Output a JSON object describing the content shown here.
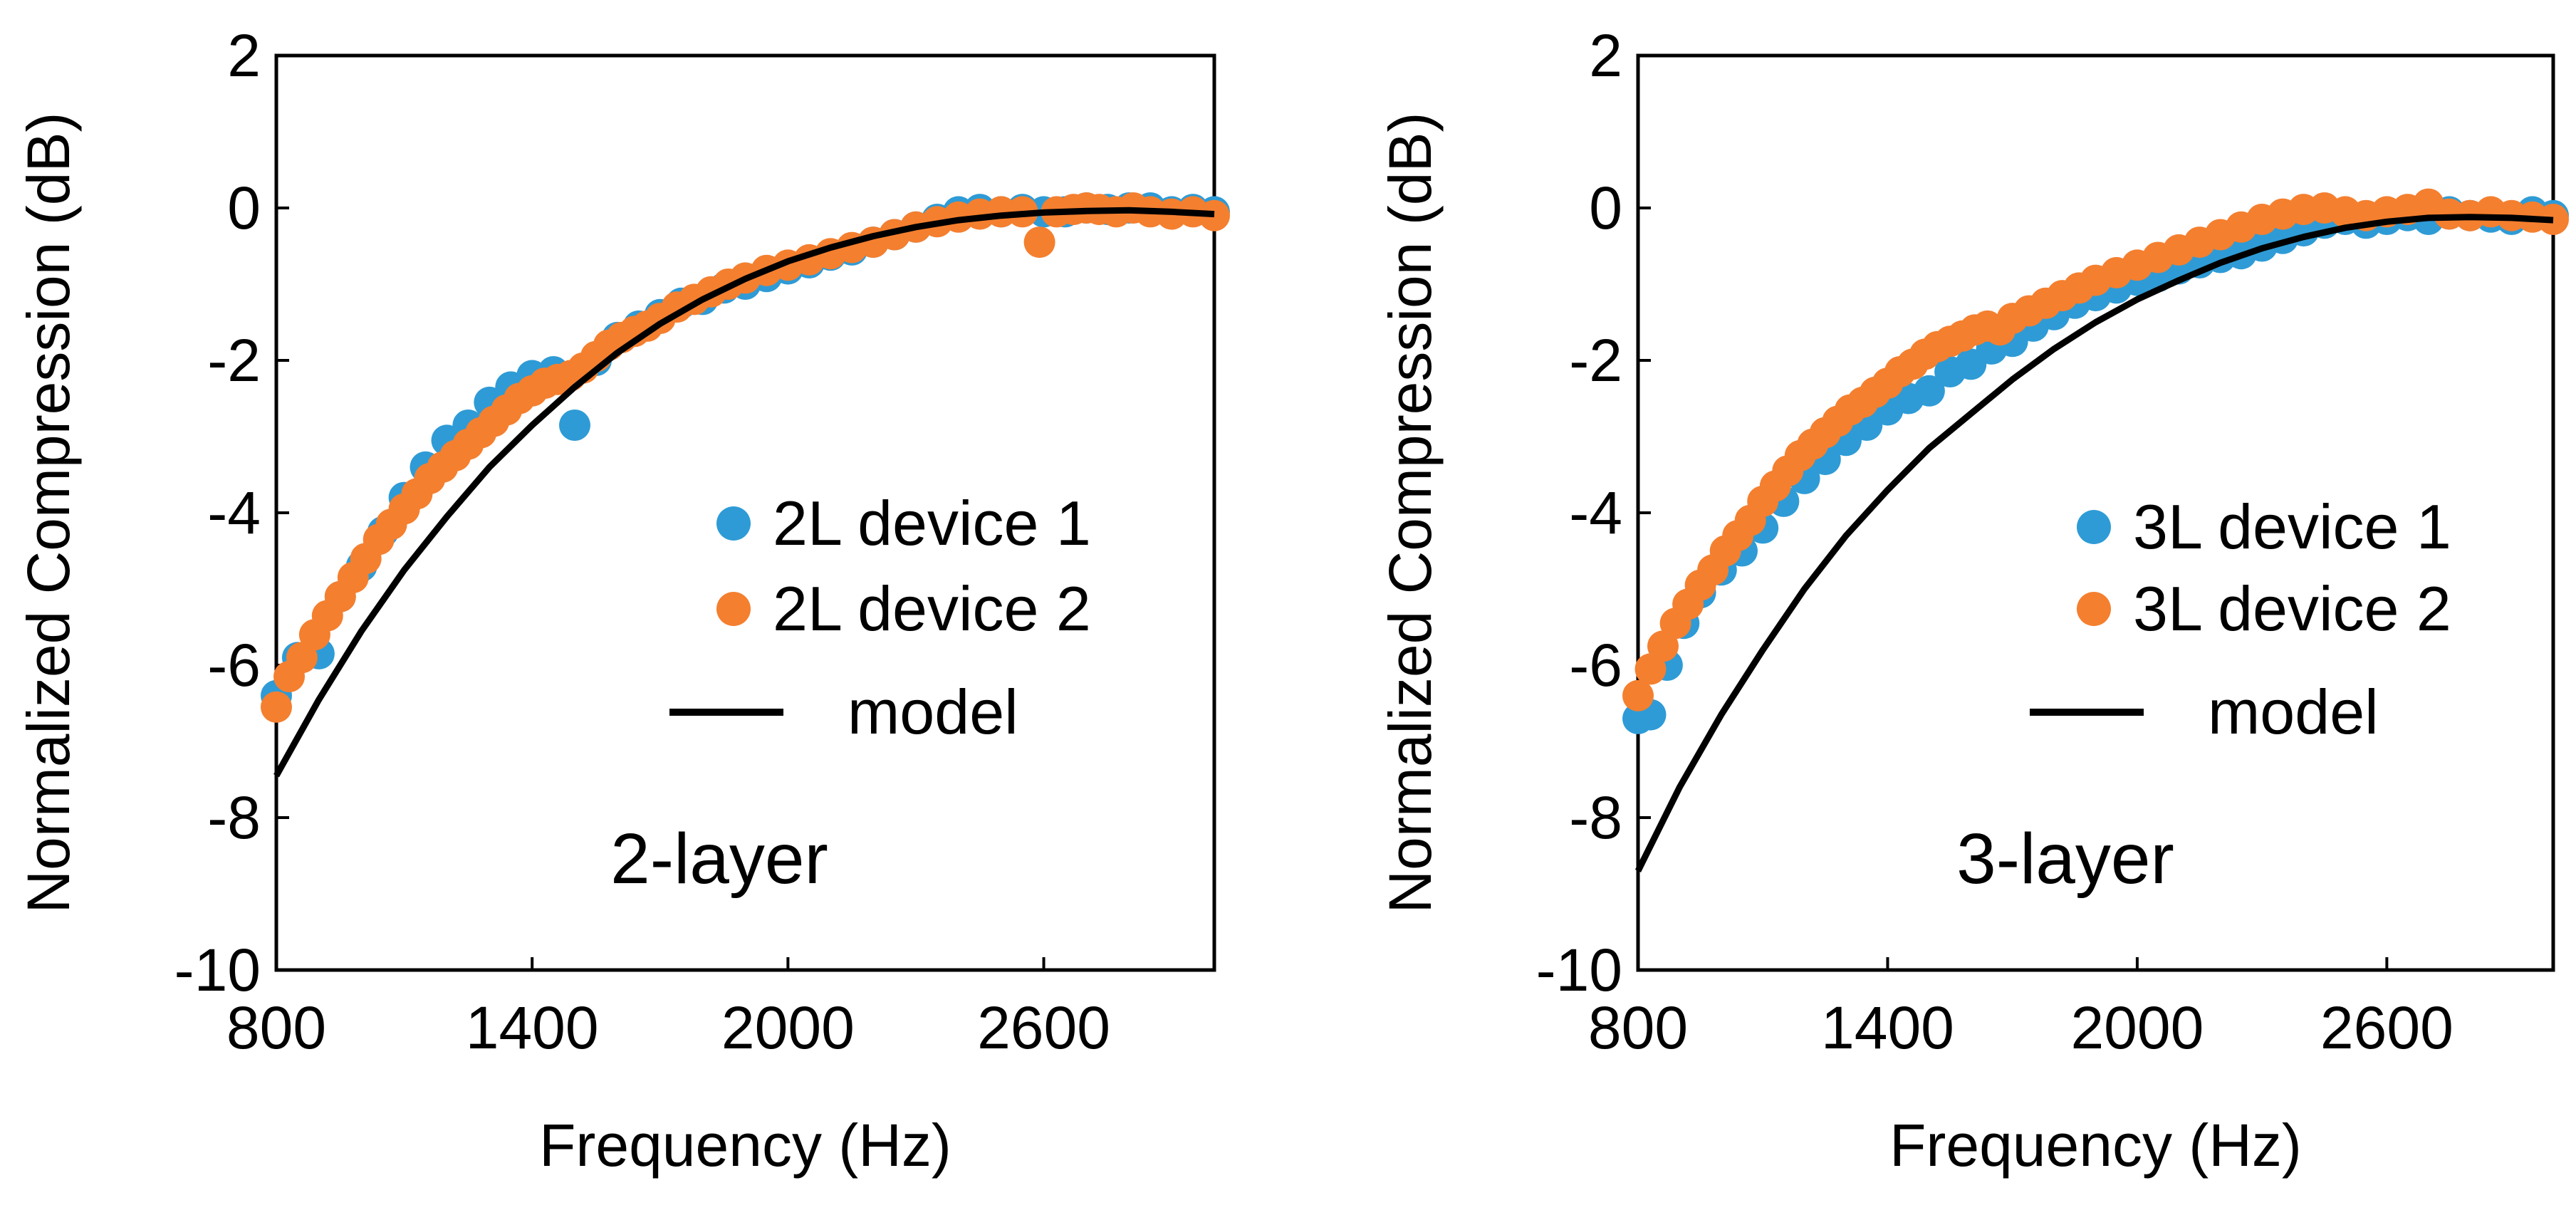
{
  "chart_data": [
    {
      "type": "scatter",
      "panel_label": "2-layer",
      "xlabel": "Frequency (Hz)",
      "ylabel": "Normalized Compression (dB)",
      "xlim": [
        800,
        3000
      ],
      "ylim": [
        -10,
        2
      ],
      "xticks": [
        800,
        1400,
        2000,
        2600
      ],
      "yticks": [
        2,
        0,
        -2,
        -4,
        -6,
        -8,
        -10
      ],
      "grid": false,
      "legend_position": "right-middle",
      "series": [
        {
          "name": "2L device 1",
          "kind": "scatter",
          "color": "#2E9BD6",
          "x": [
            800,
            850,
            900,
            950,
            1000,
            1050,
            1100,
            1150,
            1200,
            1250,
            1300,
            1350,
            1400,
            1450,
            1500,
            1550,
            1600,
            1650,
            1700,
            1750,
            1800,
            1850,
            1900,
            1950,
            2000,
            2050,
            2100,
            2150,
            2200,
            2250,
            2300,
            2350,
            2400,
            2450,
            2500,
            2550,
            2600,
            2650,
            2700,
            2750,
            2800,
            2850,
            2900,
            2950,
            3000
          ],
          "values": [
            -6.4,
            -5.9,
            -5.85,
            -5.1,
            -4.7,
            -4.25,
            -3.8,
            -3.4,
            -3.05,
            -2.85,
            -2.55,
            -2.35,
            -2.2,
            -2.15,
            -2.85,
            -2.0,
            -1.7,
            -1.55,
            -1.4,
            -1.25,
            -1.2,
            -1.05,
            -1.0,
            -0.9,
            -0.8,
            -0.72,
            -0.62,
            -0.55,
            -0.45,
            -0.35,
            -0.25,
            -0.15,
            -0.05,
            -0.02,
            -0.05,
            -0.02,
            -0.05,
            -0.05,
            0.0,
            -0.02,
            0.0,
            0.0,
            -0.05,
            -0.02,
            -0.05
          ]
        },
        {
          "name": "2L device 2",
          "kind": "scatter",
          "color": "#F47F2F",
          "x": [
            800,
            830,
            860,
            890,
            920,
            950,
            980,
            1010,
            1040,
            1070,
            1100,
            1130,
            1160,
            1190,
            1220,
            1250,
            1280,
            1310,
            1340,
            1370,
            1400,
            1430,
            1460,
            1490,
            1520,
            1550,
            1580,
            1610,
            1640,
            1670,
            1700,
            1740,
            1780,
            1820,
            1860,
            1900,
            1950,
            2000,
            2050,
            2100,
            2150,
            2200,
            2250,
            2300,
            2350,
            2400,
            2450,
            2500,
            2550,
            2590,
            2630,
            2670,
            2700,
            2730,
            2770,
            2810,
            2850,
            2900,
            2950,
            3000
          ],
          "values": [
            -6.55,
            -6.15,
            -5.9,
            -5.6,
            -5.35,
            -5.1,
            -4.85,
            -4.6,
            -4.35,
            -4.15,
            -3.95,
            -3.75,
            -3.55,
            -3.4,
            -3.25,
            -3.1,
            -2.95,
            -2.8,
            -2.65,
            -2.5,
            -2.4,
            -2.3,
            -2.25,
            -2.2,
            -2.1,
            -1.95,
            -1.8,
            -1.7,
            -1.62,
            -1.55,
            -1.45,
            -1.3,
            -1.2,
            -1.1,
            -1.0,
            -0.92,
            -0.82,
            -0.75,
            -0.68,
            -0.6,
            -0.52,
            -0.45,
            -0.35,
            -0.25,
            -0.18,
            -0.12,
            -0.08,
            -0.05,
            -0.05,
            -0.45,
            -0.05,
            -0.02,
            0.0,
            -0.02,
            -0.05,
            0.0,
            -0.05,
            -0.08,
            -0.05,
            -0.1
          ]
        },
        {
          "name": "model",
          "kind": "line",
          "color": "#000000",
          "x": [
            800,
            900,
            1000,
            1100,
            1200,
            1300,
            1400,
            1500,
            1600,
            1700,
            1800,
            1900,
            2000,
            2100,
            2200,
            2300,
            2400,
            2500,
            2600,
            2700,
            2800,
            2900,
            3000
          ],
          "values": [
            -7.45,
            -6.45,
            -5.55,
            -4.75,
            -4.05,
            -3.4,
            -2.85,
            -2.35,
            -1.9,
            -1.52,
            -1.2,
            -0.93,
            -0.7,
            -0.52,
            -0.37,
            -0.25,
            -0.16,
            -0.1,
            -0.06,
            -0.04,
            -0.03,
            -0.05,
            -0.08
          ]
        }
      ]
    },
    {
      "type": "scatter",
      "panel_label": "3-layer",
      "xlabel": "Frequency (Hz)",
      "ylabel": "Normalized Compression (dB)",
      "xlim": [
        800,
        3000
      ],
      "ylim": [
        -10,
        2
      ],
      "xticks": [
        800,
        1400,
        2000,
        2600
      ],
      "yticks": [
        2,
        0,
        -2,
        -4,
        -6,
        -8,
        -10
      ],
      "grid": false,
      "legend_position": "right-middle",
      "series": [
        {
          "name": "3L device 1",
          "kind": "scatter",
          "color": "#2E9BD6",
          "x": [
            800,
            830,
            870,
            910,
            950,
            1000,
            1050,
            1100,
            1150,
            1200,
            1250,
            1300,
            1350,
            1400,
            1450,
            1500,
            1550,
            1600,
            1650,
            1700,
            1750,
            1800,
            1850,
            1900,
            1950,
            2000,
            2050,
            2100,
            2150,
            2200,
            2250,
            2300,
            2350,
            2400,
            2450,
            2500,
            2550,
            2600,
            2650,
            2700,
            2750,
            2800,
            2850,
            2900,
            2950,
            3000
          ],
          "values": [
            -6.7,
            -6.65,
            -6.0,
            -5.45,
            -5.05,
            -4.75,
            -4.5,
            -4.2,
            -3.85,
            -3.55,
            -3.3,
            -3.05,
            -2.85,
            -2.65,
            -2.5,
            -2.4,
            -2.15,
            -2.05,
            -1.85,
            -1.75,
            -1.55,
            -1.4,
            -1.25,
            -1.15,
            -1.05,
            -0.95,
            -0.9,
            -0.8,
            -0.72,
            -0.65,
            -0.6,
            -0.5,
            -0.4,
            -0.3,
            -0.2,
            -0.15,
            -0.2,
            -0.15,
            -0.1,
            -0.15,
            -0.05,
            -0.1,
            -0.12,
            -0.15,
            -0.05,
            -0.1
          ]
        },
        {
          "name": "3L device 2",
          "kind": "scatter",
          "color": "#F47F2F",
          "x": [
            800,
            830,
            860,
            890,
            920,
            950,
            980,
            1010,
            1040,
            1070,
            1100,
            1130,
            1160,
            1190,
            1220,
            1250,
            1280,
            1310,
            1340,
            1370,
            1400,
            1430,
            1460,
            1490,
            1520,
            1550,
            1580,
            1610,
            1640,
            1670,
            1700,
            1740,
            1780,
            1820,
            1860,
            1900,
            1950,
            2000,
            2050,
            2100,
            2150,
            2200,
            2250,
            2300,
            2350,
            2400,
            2450,
            2500,
            2550,
            2600,
            2650,
            2700,
            2750,
            2800,
            2850,
            2900,
            2950,
            3000
          ],
          "values": [
            -6.4,
            -6.05,
            -5.75,
            -5.45,
            -5.2,
            -4.95,
            -4.75,
            -4.5,
            -4.3,
            -4.1,
            -3.85,
            -3.65,
            -3.45,
            -3.25,
            -3.1,
            -2.95,
            -2.8,
            -2.65,
            -2.55,
            -2.42,
            -2.3,
            -2.15,
            -2.05,
            -1.92,
            -1.82,
            -1.75,
            -1.68,
            -1.6,
            -1.55,
            -1.6,
            -1.45,
            -1.35,
            -1.25,
            -1.15,
            -1.05,
            -0.95,
            -0.85,
            -0.75,
            -0.65,
            -0.55,
            -0.45,
            -0.35,
            -0.25,
            -0.15,
            -0.08,
            -0.02,
            0.0,
            -0.05,
            -0.1,
            -0.05,
            -0.02,
            0.05,
            -0.08,
            -0.1,
            -0.05,
            -0.1,
            -0.12,
            -0.15
          ]
        },
        {
          "name": "model",
          "kind": "line",
          "color": "#000000",
          "x": [
            800,
            900,
            1000,
            1100,
            1200,
            1300,
            1400,
            1500,
            1600,
            1700,
            1800,
            1900,
            2000,
            2100,
            2200,
            2300,
            2400,
            2500,
            2600,
            2700,
            2800,
            2900,
            3000
          ],
          "values": [
            -8.7,
            -7.6,
            -6.65,
            -5.8,
            -5.0,
            -4.3,
            -3.7,
            -3.15,
            -2.7,
            -2.25,
            -1.85,
            -1.5,
            -1.2,
            -0.95,
            -0.72,
            -0.53,
            -0.38,
            -0.26,
            -0.18,
            -0.13,
            -0.12,
            -0.13,
            -0.16
          ]
        }
      ]
    }
  ]
}
